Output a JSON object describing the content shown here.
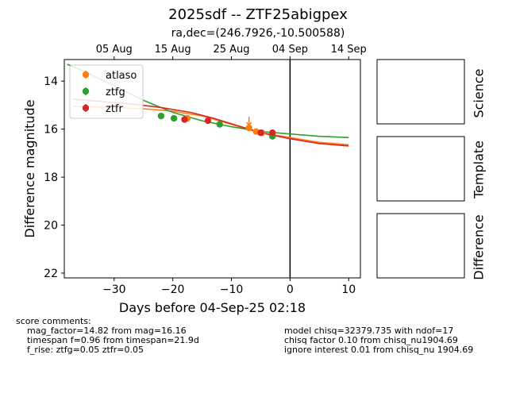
{
  "figure": {
    "title": "2025sdf -- ZTF25abigpex",
    "subtitle": "ra,dec=(246.7926,-10.500588)"
  },
  "chart_data": {
    "type": "scatter",
    "xlabel": "Days before 04-Sep-25 02:18",
    "ylabel": "Difference magnitude",
    "xlim": [
      -38.5,
      12
    ],
    "ylim": [
      22.2,
      13.1
    ],
    "y_inverted": true,
    "x_ticks": [
      -30,
      -20,
      -10,
      0,
      10
    ],
    "x_tick_labels": [
      "−30",
      "−20",
      "−10",
      "0",
      "10"
    ],
    "y_ticks": [
      14,
      16,
      18,
      20,
      22
    ],
    "y_tick_labels": [
      "14",
      "16",
      "18",
      "20",
      "22"
    ],
    "top_axis_ticks": [
      -30,
      -20,
      -10,
      0,
      10
    ],
    "top_axis_labels": [
      "05 Aug",
      "15 Aug",
      "25 Aug",
      "04 Sep",
      "14 Sep"
    ],
    "vline_x": 0,
    "legend_position": "top-left",
    "series": [
      {
        "name": "atlaso",
        "color": "#ff7f0e",
        "points": [
          [
            -17.5,
            15.55
          ],
          [
            -7.0,
            15.95
          ],
          [
            -5.8,
            16.1
          ],
          [
            -4.8,
            16.15
          ]
        ],
        "upper_limits": [
          [
            -7.0,
            15.65
          ]
        ],
        "model": [
          [
            -37,
            15.05
          ],
          [
            -30,
            15.1
          ],
          [
            -25,
            15.15
          ],
          [
            -20,
            15.25
          ],
          [
            -15,
            15.45
          ],
          [
            -10,
            15.8
          ],
          [
            -5,
            16.15
          ],
          [
            0,
            16.35
          ],
          [
            5,
            16.55
          ],
          [
            10,
            16.65
          ]
        ]
      },
      {
        "name": "ztfg",
        "color": "#2ca02c",
        "points": [
          [
            -22.0,
            15.45
          ],
          [
            -19.8,
            15.55
          ],
          [
            -12.0,
            15.8
          ],
          [
            -3.0,
            16.3
          ]
        ],
        "model": [
          [
            -38,
            13.3
          ],
          [
            -35,
            13.6
          ],
          [
            -30,
            14.2
          ],
          [
            -25,
            14.8
          ],
          [
            -20,
            15.3
          ],
          [
            -15,
            15.65
          ],
          [
            -10,
            15.9
          ],
          [
            -5,
            16.1
          ],
          [
            0,
            16.2
          ],
          [
            5,
            16.3
          ],
          [
            10,
            16.35
          ]
        ]
      },
      {
        "name": "ztfr",
        "color": "#d62728",
        "points": [
          [
            -18.0,
            15.6
          ],
          [
            -14.0,
            15.65
          ],
          [
            -5.0,
            16.15
          ],
          [
            -3.0,
            16.15
          ]
        ],
        "model": [
          [
            -37,
            14.75
          ],
          [
            -32,
            14.85
          ],
          [
            -27,
            14.95
          ],
          [
            -22,
            15.1
          ],
          [
            -17,
            15.3
          ],
          [
            -13,
            15.55
          ],
          [
            -9,
            15.85
          ],
          [
            -5,
            16.15
          ],
          [
            0,
            16.4
          ],
          [
            5,
            16.6
          ],
          [
            10,
            16.7
          ]
        ]
      }
    ]
  },
  "panels": {
    "science": "Science",
    "template": "Template",
    "difference": "Difference"
  },
  "comments": {
    "left": "score comments:\n    mag_factor=14.82 from mag=16.16\n    timespan f=0.96 from timespan=21.9d\n    f_rise: ztfg=0.05 ztfr=0.05",
    "right": "model chisq=32379.735 with ndof=17\nchisq factor 0.10 from chisq_nu1904.69\nignore interest 0.01 from chisq_nu 1904.69"
  }
}
